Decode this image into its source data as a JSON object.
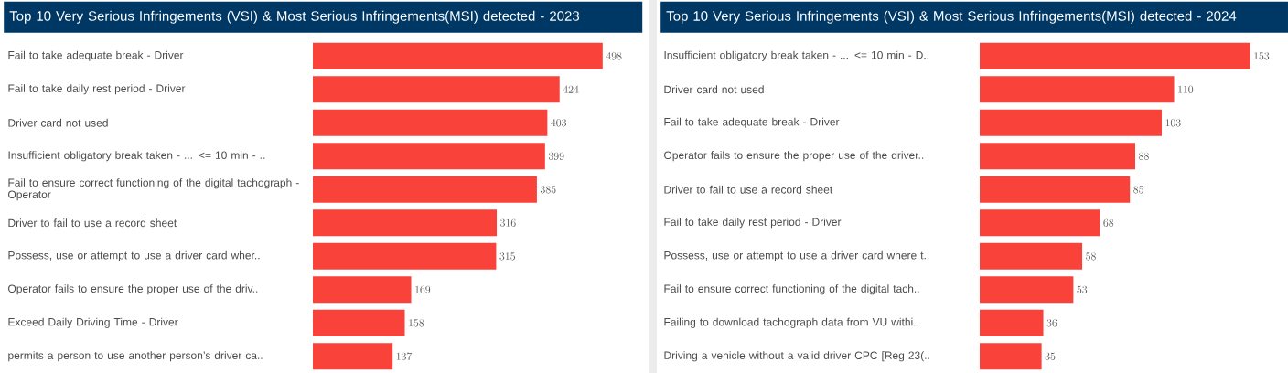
{
  "chart_data": [
    {
      "type": "bar",
      "orientation": "horizontal",
      "title": "Top 10 Very Serious Infringements (VSI) & Most Serious Infringements(MSI) detected -  2023",
      "categories": [
        "Fail to take adequate break - Driver",
        "Fail to take daily rest period - Driver",
        "Driver card not used",
        "Insufficient obligatory break taken - ... <= 10 min - ..",
        "Fail to ensure correct functioning of the digital tachograph - Operator",
        "Driver to fail to use a record sheet",
        "Possess, use or attempt to use a driver card wher..",
        "Operator fails to ensure the proper use of the driv..",
        "Exceed Daily Driving Time - Driver",
        "permits a person to use another person’s driver ca.."
      ],
      "values": [
        498,
        424,
        403,
        399,
        385,
        316,
        315,
        169,
        158,
        137
      ],
      "color": "#f8423a",
      "data_labels": true,
      "tick_labels": "y"
    },
    {
      "type": "bar",
      "orientation": "horizontal",
      "title": "Top 10 Very Serious Infringements (VSI) & Most Serious Infringements(MSI) detected - 2024",
      "categories": [
        "Insufficient obligatory break taken - ... <= 10 min - D..",
        "Driver card not used",
        "Fail to take adequate break - Driver",
        "Operator fails to ensure the proper use of the driver..",
        "Driver to fail to use a record sheet",
        "Fail to take daily rest period - Driver",
        "Possess, use or attempt to use a driver card where t..",
        "Fail to ensure correct functioning of the digital tach..",
        "Failing to download tachograph data from VU withi..",
        "Driving a vehicle without a valid driver CPC [Reg 23(.."
      ],
      "values": [
        153,
        110,
        103,
        88,
        85,
        68,
        58,
        53,
        36,
        35
      ],
      "color": "#f8423a",
      "data_labels": true,
      "tick_labels": "y"
    }
  ]
}
